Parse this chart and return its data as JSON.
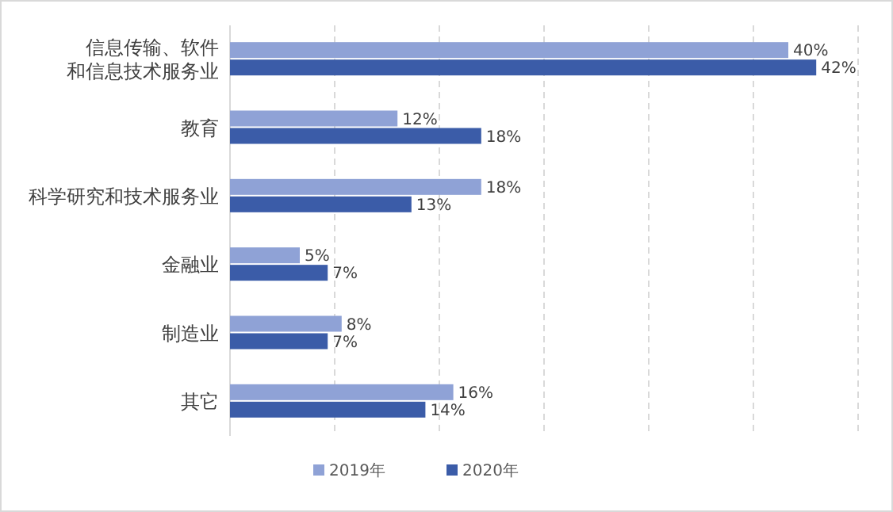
{
  "chart_data": {
    "type": "bar",
    "orientation": "horizontal",
    "categories": [
      "信息传输、软件和信息技术服务业",
      "教育",
      "科学研究和技术服务业",
      "金融业",
      "制造业",
      "其它"
    ],
    "series": [
      {
        "name": "2019年",
        "color": "#8fa2d6",
        "values": [
          40,
          12,
          18,
          5,
          8,
          16
        ],
        "value_labels": [
          "40%",
          "12%",
          "18%",
          "5%",
          "8%",
          "16%"
        ]
      },
      {
        "name": "2020年",
        "color": "#3b5ca8",
        "values": [
          42,
          18,
          13,
          7,
          7,
          14
        ],
        "value_labels": [
          "42%",
          "18%",
          "13%",
          "7%",
          "7%",
          "14%"
        ]
      }
    ],
    "xlim": [
      0,
      45
    ],
    "xticks": [
      {
        "value": 0,
        "label": null
      },
      {
        "value": 7.5,
        "label": null
      },
      {
        "value": 15,
        "label": null
      },
      {
        "value": 22.5,
        "label": null
      },
      {
        "value": 30,
        "label": null
      },
      {
        "value": 37.5,
        "label": null
      },
      {
        "value": 45,
        "label": null
      }
    ],
    "tick_labels": "y",
    "grid": "x",
    "legend": "bottom"
  }
}
